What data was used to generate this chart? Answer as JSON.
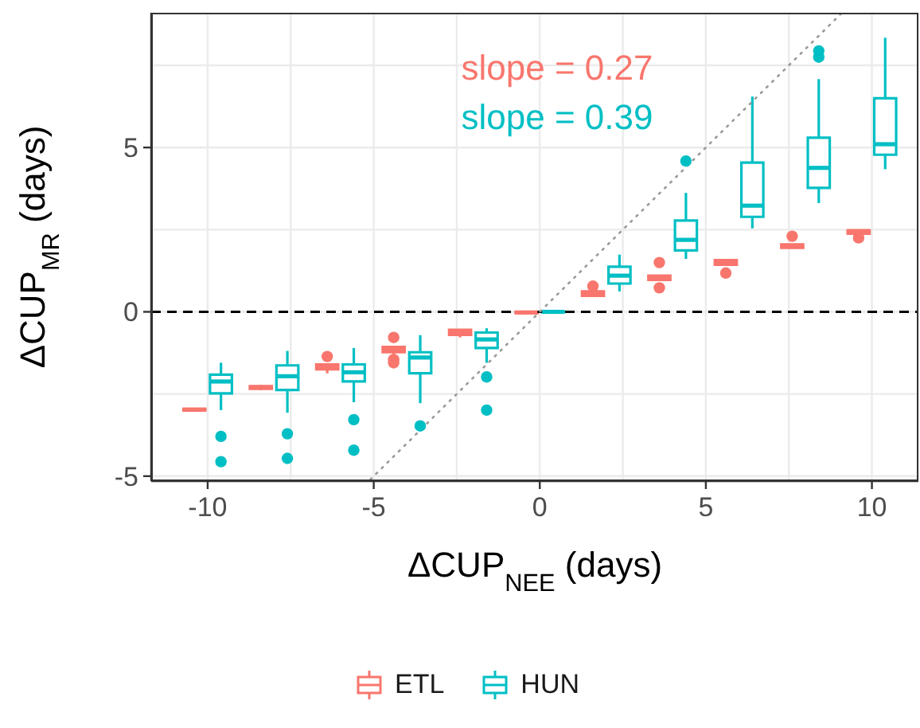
{
  "chart_data": {
    "type": "box",
    "xlabel": "ΔCUP$_{NEE}$ (days)",
    "ylabel": "ΔCUP$_{MR}$ (days)",
    "annotations": [
      "slope = 0.27",
      "slope = 0.39"
    ],
    "xlim": [
      -11.7,
      11.4
    ],
    "xticks": [
      -10,
      {
        "value": -7.5,
        "label": null
      },
      -5,
      {
        "value": -2.5,
        "label": null
      },
      0,
      {
        "value": 2.5,
        "label": null
      },
      5,
      {
        "value": 7.5,
        "label": null
      },
      10
    ],
    "ylim": [
      -5.15,
      9.1
    ],
    "yticks": [
      -5,
      {
        "value": -2.5,
        "label": null
      },
      0,
      {
        "value": 2.5,
        "label": null
      },
      5,
      {
        "value": 7.5,
        "label": null
      }
    ],
    "grid": true,
    "legend": "bottom",
    "ref_lines": [
      {
        "axis": "y",
        "value": 0,
        "color": "#000000",
        "line_style": "dashed"
      }
    ],
    "series": [
      {
        "name": "ETL",
        "color": "#f8766d",
        "x": [
          -10.4,
          -8.4,
          -6.4,
          -4.4,
          -2.4,
          -0.4,
          1.6,
          3.6,
          5.6,
          7.6,
          9.6
        ],
        "boxes": [
          {
            "low": -3.03,
            "q1": -3.0,
            "median": -2.98,
            "q3": -2.95,
            "high": -2.93
          },
          {
            "low": -2.38,
            "q1": -2.34,
            "median": -2.3,
            "q3": -2.26,
            "high": -2.22
          },
          {
            "low": -1.87,
            "q1": -1.75,
            "median": -1.67,
            "q3": -1.6,
            "high": -1.6,
            "outliers": [
              -1.36
            ]
          },
          {
            "low": -1.3,
            "q1": -1.23,
            "median": -1.15,
            "q3": -1.07,
            "high": -1.07,
            "outliers": [
              -0.78,
              -1.45,
              -1.55
            ]
          },
          {
            "low": -0.78,
            "q1": -0.7,
            "median": -0.62,
            "q3": -0.55,
            "high": -0.55
          },
          {
            "low": -0.05,
            "q1": -0.04,
            "median": -0.02,
            "q3": 0,
            "high": 0
          },
          {
            "low": 0.49,
            "q1": 0.49,
            "median": 0.55,
            "q3": 0.62,
            "high": 0.62,
            "outliers": [
              0.78
            ]
          },
          {
            "low": 0.97,
            "q1": 0.97,
            "median": 1.03,
            "q3": 1.1,
            "high": 1.1,
            "outliers": [
              1.5,
              0.73
            ]
          },
          {
            "low": 1.43,
            "q1": 1.43,
            "median": 1.5,
            "q3": 1.57,
            "high": 1.6,
            "outliers": [
              1.18
            ]
          },
          {
            "low": 1.93,
            "q1": 1.95,
            "median": 2.0,
            "q3": 2.05,
            "high": 2.06,
            "outliers": [
              2.3
            ]
          },
          {
            "low": 2.37,
            "q1": 2.38,
            "median": 2.43,
            "q3": 2.48,
            "high": 2.49,
            "outliers": [
              2.25
            ]
          }
        ]
      },
      {
        "name": "HUN",
        "color": "#00bfc4",
        "x": [
          -9.6,
          -7.6,
          -5.6,
          -3.6,
          -1.6,
          0.4,
          2.4,
          4.4,
          6.4,
          8.4,
          10.4
        ],
        "boxes": [
          {
            "low": -2.99,
            "q1": -2.48,
            "median": -2.12,
            "q3": -1.91,
            "high": -1.55,
            "outliers": [
              -3.79,
              -4.56
            ]
          },
          {
            "low": -3.07,
            "q1": -2.38,
            "median": -1.96,
            "q3": -1.63,
            "high": -1.19,
            "outliers": [
              -3.71,
              -4.46
            ]
          },
          {
            "low": -2.75,
            "q1": -2.12,
            "median": -1.84,
            "q3": -1.6,
            "high": -1.1,
            "outliers": [
              -3.28,
              -4.21
            ]
          },
          {
            "low": -2.78,
            "q1": -1.87,
            "median": -1.39,
            "q3": -1.23,
            "high": -0.71,
            "outliers": [
              -3.47
            ]
          },
          {
            "low": -1.55,
            "q1": -1.1,
            "median": -0.84,
            "q3": -0.63,
            "high": -0.5,
            "outliers": [
              -1.98,
              -2.99
            ]
          },
          {
            "low": -0.02,
            "q1": -0.01,
            "median": 0,
            "q3": 0.01,
            "high": 0.02
          },
          {
            "low": 0.62,
            "q1": 0.86,
            "median": 1.1,
            "q3": 1.37,
            "high": 1.74
          },
          {
            "low": 1.61,
            "q1": 1.87,
            "median": 2.19,
            "q3": 2.78,
            "high": 3.62,
            "outliers": [
              4.59
            ]
          },
          {
            "low": 2.54,
            "q1": 2.89,
            "median": 3.23,
            "q3": 4.54,
            "high": 6.55
          },
          {
            "low": 3.31,
            "q1": 3.77,
            "median": 4.38,
            "q3": 5.3,
            "high": 7.08,
            "outliers": [
              7.75,
              7.94
            ]
          },
          {
            "low": 4.34,
            "q1": 4.78,
            "median": 5.1,
            "q3": 6.5,
            "high": 8.34
          }
        ]
      },
      {
        "type": "line",
        "color": "#999999",
        "line_style": "dotted",
        "x": [
          -5.1,
          9.1
        ],
        "values": [
          -5.1,
          9.1
        ]
      }
    ]
  }
}
